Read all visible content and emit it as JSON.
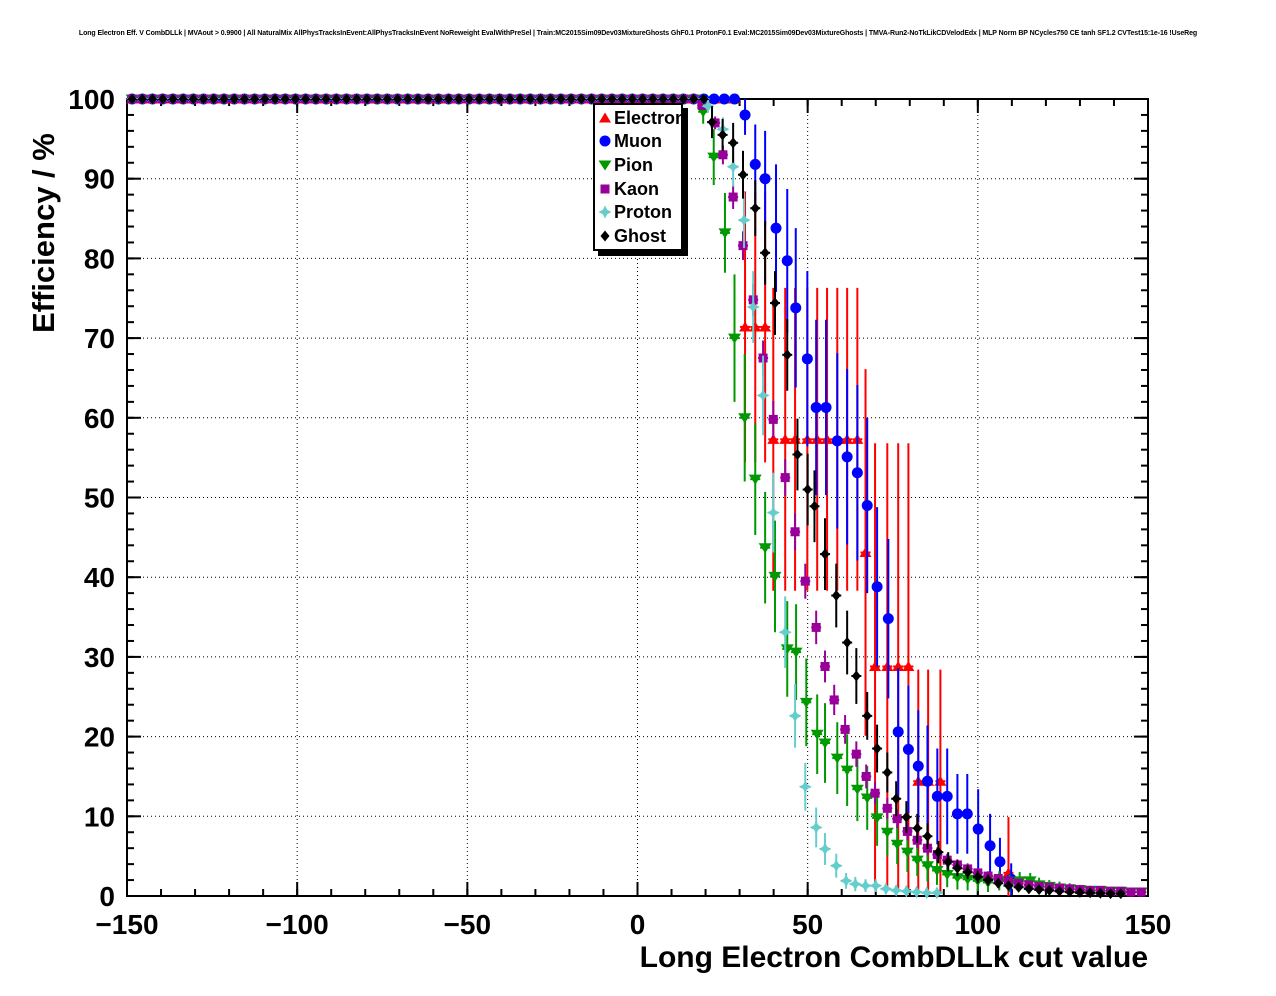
{
  "header": {
    "title": "Long Electron Eff. V CombDLLk | MVAout > 0.9900 | All NaturalMix AllPhysTracksInEvent:AllPhysTracksInEvent NoReweight EvalWithPreSel | Train:MC2015Sim09Dev03MixtureGhosts GhF0.1 ProtonF0.1 Eval:MC2015Sim09Dev03MixtureGhosts | TMVA-Run2-NoTkLikCDVelodEdx | MLP Norm BP NCycles750 CE tanh SF1.2 CVTest15:1e-16 !UseReg"
  },
  "chart_data": {
    "type": "scatter",
    "title": "Long Electron Eff. V CombDLLk | MVAout > 0.9900 | All NaturalMix AllPhysTracksInEvent:AllPhysTracksInEvent NoReweight EvalWithPreSel | Train:MC2015Sim09Dev03MixtureGhosts GhF0.1 ProtonF0.1 Eval:MC2015Sim09Dev03MixtureGhosts | TMVA-Run2-NoTkLikCDVelodEdx | MLP Norm BP NCycles750 CE tanh SF1.2 CVTest15:1e-16 !UseReg",
    "xlabel": "Long Electron CombDLLk cut value",
    "ylabel": "Efficiency / %",
    "xlim": [
      -150,
      150
    ],
    "ylim": [
      0,
      100
    ],
    "x_major_step": 50,
    "x_minor_step": 10,
    "y_major_step": 10,
    "y_minor_step": 2,
    "grid": true,
    "legend": {
      "position": "top-center",
      "box": true,
      "shadow": true
    },
    "series": [
      {
        "name": "Electron",
        "color": "#ff0000",
        "marker": "triangle-up",
        "plateau": {
          "from": -148.5,
          "to": 29,
          "step": 3,
          "y": 100
        },
        "points": [
          [
            31.6,
            71.4,
            17
          ],
          [
            34.6,
            71.4,
            17
          ],
          [
            37.5,
            71.4,
            17
          ],
          [
            39.9,
            57.3,
            19
          ],
          [
            43.4,
            57.3,
            19
          ],
          [
            46.3,
            57.3,
            19
          ],
          [
            49.9,
            57.3,
            19
          ],
          [
            52.8,
            57.3,
            19
          ],
          [
            55.7,
            57.3,
            19
          ],
          [
            58.7,
            57.3,
            19
          ],
          [
            61.6,
            57.3,
            19
          ],
          [
            64.6,
            57.3,
            19
          ],
          [
            67,
            43.1,
            23
          ],
          [
            69.8,
            28.8,
            28
          ],
          [
            73.4,
            28.8,
            28
          ],
          [
            76.6,
            28.8,
            28
          ],
          [
            79.6,
            28.8,
            28
          ],
          [
            82.5,
            14.4,
            14
          ],
          [
            85.4,
            14.4,
            14
          ],
          [
            89,
            14.4,
            14
          ],
          [
            109,
            2.9,
            7
          ]
        ]
      },
      {
        "name": "Muon",
        "color": "#0000ff",
        "marker": "circle",
        "plateau": {
          "from": -148.5,
          "to": 29,
          "step": 3,
          "y": 100
        },
        "points": [
          [
            31.6,
            98,
            2.5
          ],
          [
            34.6,
            91.8,
            5
          ],
          [
            37.5,
            90,
            6
          ],
          [
            40.7,
            83.8,
            8
          ],
          [
            44,
            79.7,
            9
          ],
          [
            46.5,
            73.8,
            10
          ],
          [
            49.9,
            67.4,
            11
          ],
          [
            52.5,
            61.3,
            11
          ],
          [
            55.4,
            61.3,
            11
          ],
          [
            58.7,
            57.1,
            11
          ],
          [
            61.6,
            55.1,
            11
          ],
          [
            64.6,
            53.1,
            11
          ],
          [
            67.5,
            49,
            11
          ],
          [
            70.4,
            38.8,
            10
          ],
          [
            73.7,
            34.8,
            10
          ],
          [
            76.6,
            20.6,
            8
          ],
          [
            79.6,
            18.4,
            8
          ],
          [
            82.5,
            16.3,
            7
          ],
          [
            85.2,
            14.4,
            7
          ],
          [
            88.1,
            12.5,
            6
          ],
          [
            91,
            12.5,
            6
          ],
          [
            94,
            10.3,
            5
          ],
          [
            96.9,
            10.3,
            5
          ],
          [
            100.1,
            8.4,
            5
          ],
          [
            103.6,
            6.3,
            4
          ],
          [
            106.5,
            4.3,
            3
          ],
          [
            109.8,
            2.1,
            2
          ]
        ]
      },
      {
        "name": "Pion",
        "color": "#009900",
        "marker": "triangle-down",
        "plateau": {
          "from": -148.5,
          "to": 17,
          "step": 3,
          "y": 100
        },
        "points": [
          [
            19.3,
            98.4,
            1.5
          ],
          [
            22.4,
            92.7,
            3.5
          ],
          [
            25.7,
            83.2,
            5
          ],
          [
            28.5,
            70,
            8
          ],
          [
            31.5,
            60,
            8
          ],
          [
            34.6,
            52.3,
            7
          ],
          [
            37.5,
            43.7,
            7
          ],
          [
            40.4,
            40.1,
            7
          ],
          [
            44,
            31,
            6
          ],
          [
            46.6,
            30.6,
            6
          ],
          [
            49.6,
            24.3,
            5.5
          ],
          [
            52.8,
            20.3,
            5
          ],
          [
            55.1,
            19.2,
            5
          ],
          [
            58.7,
            17.3,
            4.5
          ],
          [
            61.6,
            15.8,
            4.5
          ],
          [
            64.6,
            13.4,
            4
          ],
          [
            67.5,
            12.3,
            4
          ],
          [
            70.4,
            9.8,
            3.5
          ],
          [
            73.4,
            8,
            3
          ],
          [
            76.3,
            6.5,
            2.5
          ],
          [
            79.3,
            5.5,
            2.5
          ],
          [
            82.2,
            4.5,
            2
          ],
          [
            85.2,
            3.8,
            2
          ],
          [
            88,
            3.2,
            1.8
          ],
          [
            91,
            2.7,
            1.6
          ],
          [
            94,
            2.3,
            1.5
          ],
          [
            97,
            2.1,
            1.4
          ],
          [
            100,
            1.9,
            1.3
          ],
          [
            103,
            1.7,
            1.2
          ],
          [
            106.3,
            1.9,
            1.2
          ],
          [
            109.3,
            1.6,
            1.1
          ],
          [
            112.3,
            1.9,
            1.1
          ],
          [
            115.4,
            1.9,
            1
          ],
          [
            118,
            1.4,
            0.9
          ],
          [
            121,
            1.2,
            0.8
          ],
          [
            124,
            1,
            0.8
          ],
          [
            127,
            0.9,
            0.7
          ],
          [
            130,
            0.8,
            0.6
          ],
          [
            133,
            0.7,
            0.6
          ],
          [
            136,
            0.7,
            0.5
          ],
          [
            139,
            0.6,
            0.5
          ],
          [
            142,
            0.6,
            0.4
          ],
          [
            145,
            0.5,
            0.4
          ],
          [
            148,
            0.5,
            0.4
          ]
        ]
      },
      {
        "name": "Kaon",
        "color": "#990099",
        "marker": "square",
        "plateau": {
          "from": -148.5,
          "to": 17,
          "step": 3,
          "y": 100
        },
        "points": [
          [
            19,
            99.2,
            0.5
          ],
          [
            22.8,
            97,
            0.8
          ],
          [
            25.1,
            93,
            1.2
          ],
          [
            28.1,
            87.7,
            1.5
          ],
          [
            31,
            81.6,
            1.8
          ],
          [
            34,
            74.8,
            2
          ],
          [
            36.9,
            67.5,
            2.2
          ],
          [
            39.9,
            59.8,
            2.3
          ],
          [
            43.4,
            52.5,
            2.3
          ],
          [
            46.3,
            45.7,
            2.3
          ],
          [
            49.3,
            39.5,
            2.2
          ],
          [
            52.5,
            33.7,
            2.1
          ],
          [
            55.1,
            28.8,
            2
          ],
          [
            57.8,
            24.6,
            1.9
          ],
          [
            61,
            20.9,
            1.8
          ],
          [
            64.3,
            17.8,
            1.6
          ],
          [
            67.2,
            15,
            1.5
          ],
          [
            69.8,
            12.9,
            1.4
          ],
          [
            73.4,
            11,
            1.3
          ],
          [
            76.3,
            9.7,
            1.2
          ],
          [
            79.3,
            8.1,
            1.1
          ],
          [
            82.2,
            7,
            1
          ],
          [
            85.2,
            6,
            0.9
          ],
          [
            88.1,
            5.2,
            0.9
          ],
          [
            91,
            4.5,
            0.8
          ],
          [
            94,
            3.9,
            0.7
          ],
          [
            97,
            3.4,
            0.7
          ],
          [
            100,
            2.9,
            0.6
          ],
          [
            103,
            2.5,
            0.6
          ],
          [
            106,
            2.2,
            0.5
          ],
          [
            109,
            1.9,
            0.5
          ],
          [
            112,
            1.6,
            0.4
          ],
          [
            115,
            1.4,
            0.4
          ],
          [
            118,
            1.2,
            0.4
          ],
          [
            121,
            1.1,
            0.3
          ],
          [
            124,
            1,
            0.3
          ],
          [
            127,
            0.9,
            0.3
          ],
          [
            130,
            0.8,
            0.3
          ],
          [
            133,
            0.7,
            0.2
          ],
          [
            136,
            0.7,
            0.2
          ],
          [
            139,
            0.6,
            0.2
          ],
          [
            142,
            0.6,
            0.2
          ],
          [
            145,
            0.5,
            0.2
          ],
          [
            148,
            0.5,
            0.2
          ]
        ]
      },
      {
        "name": "Proton",
        "color": "#66cdcd",
        "marker": "star4",
        "plateau": {
          "from": -148.5,
          "to": 20,
          "step": 3,
          "y": 100
        },
        "points": [
          [
            20.7,
            99.1,
            0.8
          ],
          [
            25.1,
            96.2,
            1.5
          ],
          [
            28.1,
            91.5,
            2.5
          ],
          [
            31.3,
            84.8,
            3.5
          ],
          [
            34,
            73.9,
            4.5
          ],
          [
            36.9,
            62.8,
            5
          ],
          [
            39.9,
            48.1,
            5
          ],
          [
            43.4,
            33.1,
            4.5
          ],
          [
            46.3,
            22.6,
            4
          ],
          [
            49.3,
            13.7,
            3
          ],
          [
            52.5,
            8.6,
            2.5
          ],
          [
            55.1,
            5.9,
            2
          ],
          [
            58.4,
            3.8,
            1.5
          ],
          [
            61.3,
            1.9,
            1
          ],
          [
            64,
            1.5,
            0.9
          ],
          [
            67,
            1.3,
            0.8
          ],
          [
            70,
            1.3,
            0.8
          ],
          [
            73,
            0.9,
            0.6
          ],
          [
            76,
            0.7,
            0.5
          ],
          [
            79,
            0.6,
            0.5
          ],
          [
            82,
            0.5,
            0.4
          ],
          [
            85,
            0.4,
            0.4
          ],
          [
            88,
            0.4,
            0.3
          ]
        ]
      },
      {
        "name": "Ghost",
        "color": "#000000",
        "marker": "diamond",
        "plateau": {
          "from": -148.5,
          "to": 20,
          "step": 3,
          "y": 100
        },
        "points": [
          [
            21.9,
            97.1,
            2
          ],
          [
            25,
            95.5,
            2
          ],
          [
            28.1,
            94.5,
            2.5
          ],
          [
            31,
            90.5,
            3
          ],
          [
            34.6,
            86.3,
            3.5
          ],
          [
            37.5,
            80.7,
            4
          ],
          [
            40.4,
            74.4,
            4
          ],
          [
            44,
            67.9,
            4.5
          ],
          [
            47,
            55.4,
            4.5
          ],
          [
            50,
            51,
            4.5
          ],
          [
            52,
            48.9,
            4.5
          ],
          [
            55.1,
            42.9,
            4.5
          ],
          [
            58.4,
            37.7,
            4
          ],
          [
            61.6,
            31.8,
            4
          ],
          [
            64.3,
            27.6,
            3.5
          ],
          [
            67.5,
            22.6,
            3
          ],
          [
            70.4,
            18.5,
            3
          ],
          [
            73.4,
            15.5,
            2.5
          ],
          [
            76,
            12.2,
            2.2
          ],
          [
            79,
            9.9,
            2
          ],
          [
            82.2,
            8.5,
            1.8
          ],
          [
            85.2,
            7.5,
            1.6
          ],
          [
            88.4,
            5.5,
            1.4
          ],
          [
            91.3,
            4.3,
            1.2
          ],
          [
            94,
            3.5,
            1
          ],
          [
            97,
            3,
            0.9
          ],
          [
            100,
            2.4,
            0.8
          ],
          [
            103,
            2,
            0.7
          ],
          [
            106,
            1.6,
            0.6
          ],
          [
            109,
            1.3,
            0.5
          ],
          [
            112,
            1.1,
            0.5
          ],
          [
            115,
            0.9,
            0.4
          ],
          [
            118,
            0.8,
            0.4
          ],
          [
            121,
            0.7,
            0.3
          ],
          [
            124,
            0.6,
            0.3
          ],
          [
            127,
            0.5,
            0.3
          ],
          [
            130,
            0.45,
            0.2
          ],
          [
            133,
            0.4,
            0.2
          ],
          [
            136,
            0.35,
            0.2
          ],
          [
            139,
            0.3,
            0.2
          ],
          [
            142,
            0.3,
            0.2
          ]
        ]
      }
    ]
  }
}
